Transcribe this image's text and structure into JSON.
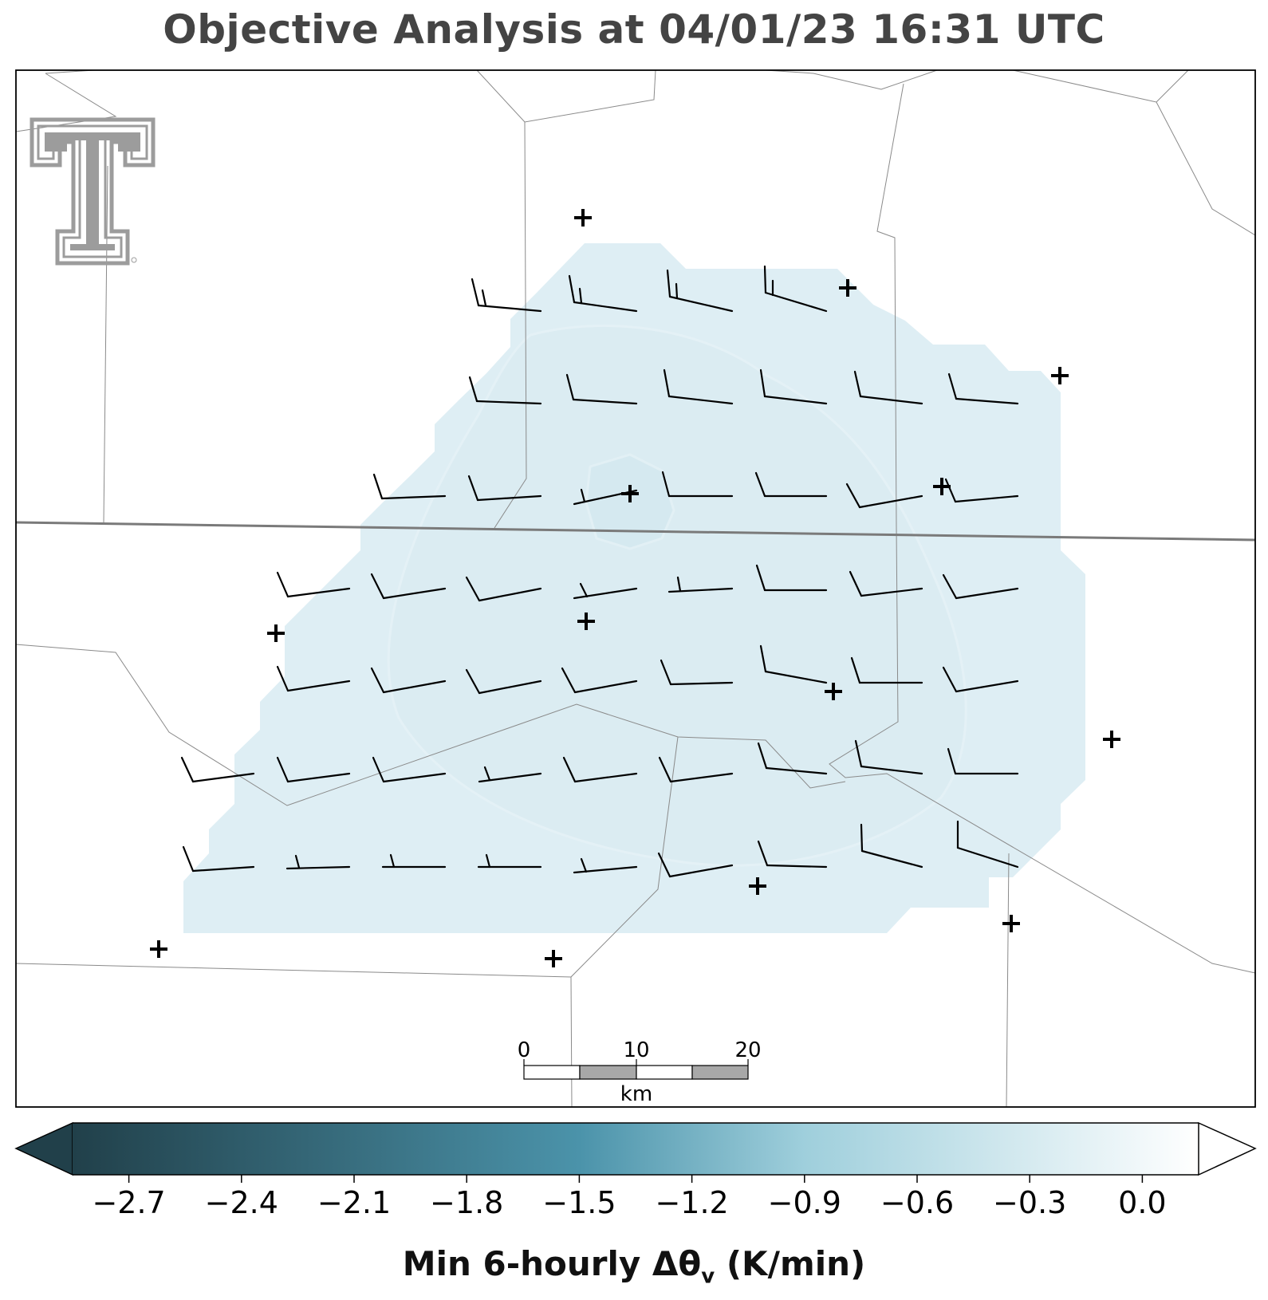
{
  "title": "Objective Analysis at 04/01/23 16:31 UTC",
  "colorbar": {
    "label_prefix": "Min 6-hourly Δθ",
    "label_sub": "v",
    "label_suffix": " (K/min)",
    "ticks": [
      "−2.7",
      "−2.4",
      "−2.1",
      "−1.8",
      "−1.5",
      "−1.2",
      "−0.9",
      "−0.6",
      "−0.3",
      "0.0"
    ],
    "min": -2.85,
    "max": 0.15,
    "color_low": "#21404a",
    "color_mid": "#4b93aa",
    "color_light": "#9fcfdc",
    "color_high": "#ffffff",
    "extend": "both"
  },
  "scale_bar": {
    "labels": [
      "0",
      "10",
      "20"
    ],
    "unit": "km"
  },
  "logo": {
    "name": "Texas Tech Double T",
    "color": "#9c9c9c"
  },
  "analysis_field": {
    "value_approx": -0.1,
    "fill_color": "#deeef4"
  },
  "stations_icon": "plus-marker-icon",
  "wind_barb_icon": "wind-barb-icon"
}
